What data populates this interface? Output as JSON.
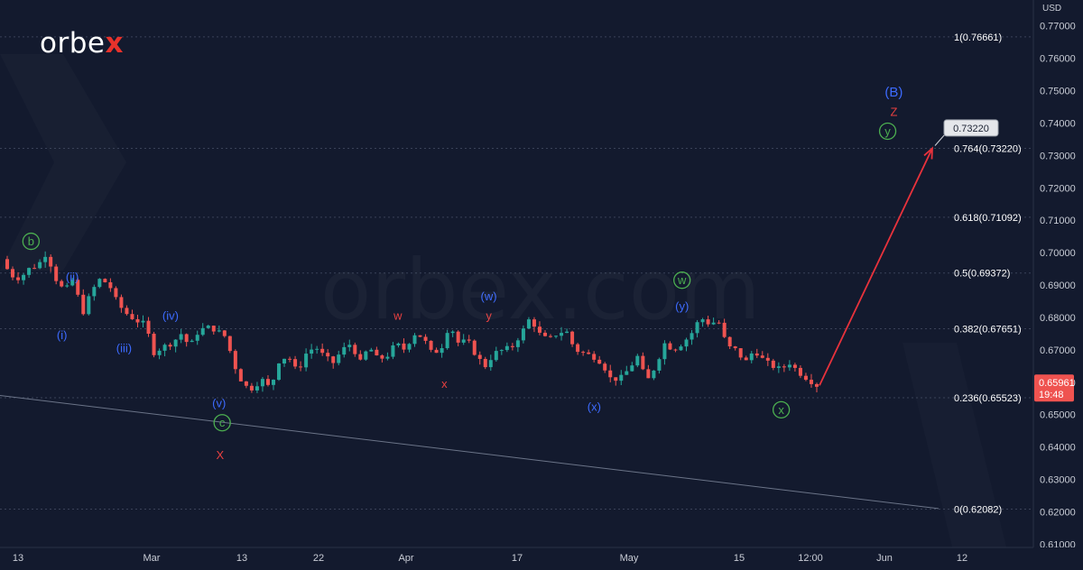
{
  "brand": {
    "logo_prefix": "orbe",
    "logo_accent": "x",
    "watermark": "orbex.com"
  },
  "colors": {
    "background": "#131a2e",
    "grid": "#3a4258",
    "axis_text": "#c9cdd6",
    "candle_up": "#26a69a",
    "candle_down": "#ef5350",
    "wave_blue": "#3d6bff",
    "wave_red": "#e84040",
    "wave_green": "#4caf50",
    "arrow": "#e8323c",
    "price_badge": "#ef5350"
  },
  "chart_data": {
    "type": "candlestick",
    "currency": "USD",
    "y_ticks": [
      0.61,
      0.62,
      0.63,
      0.64,
      0.65,
      0.66,
      0.67,
      0.68,
      0.69,
      0.7,
      0.71,
      0.72,
      0.73,
      0.74,
      0.75,
      0.76,
      0.77
    ],
    "ylim": [
      0.609,
      0.778
    ],
    "x_ticks": [
      "13",
      "Mar",
      "13",
      "22",
      "Apr",
      "17",
      "May",
      "15",
      "12:00",
      "Jun",
      "12"
    ],
    "fib_levels": [
      {
        "label": "1(0.76661)",
        "value": 0.76661
      },
      {
        "label": "0.764(0.73220)",
        "value": 0.7322
      },
      {
        "label": "0.618(0.71092)",
        "value": 0.71092
      },
      {
        "label": "0.5(0.69372)",
        "value": 0.69372
      },
      {
        "label": "0.382(0.67651)",
        "value": 0.67651
      },
      {
        "label": "0.236(0.65523)",
        "value": 0.65523
      },
      {
        "label": "0(0.62082)",
        "value": 0.62082
      }
    ],
    "current_price": {
      "value": "0.65961",
      "countdown": "19:48"
    },
    "target_label": "0.73220",
    "price_path": [
      0.698,
      0.693,
      0.692,
      0.695,
      0.696,
      0.7,
      0.692,
      0.688,
      0.692,
      0.681,
      0.688,
      0.692,
      0.69,
      0.684,
      0.681,
      0.679,
      0.678,
      0.669,
      0.671,
      0.672,
      0.675,
      0.671,
      0.676,
      0.677,
      0.676,
      0.674,
      0.665,
      0.659,
      0.658,
      0.661,
      0.658,
      0.667,
      0.668,
      0.663,
      0.669,
      0.671,
      0.668,
      0.666,
      0.67,
      0.672,
      0.666,
      0.671,
      0.667,
      0.668,
      0.672,
      0.67,
      0.675,
      0.674,
      0.669,
      0.67,
      0.678,
      0.672,
      0.673,
      0.668,
      0.665,
      0.669,
      0.67,
      0.671,
      0.675,
      0.68,
      0.675,
      0.673,
      0.675,
      0.676,
      0.67,
      0.669,
      0.668,
      0.666,
      0.661,
      0.661,
      0.664,
      0.668,
      0.66,
      0.665,
      0.672,
      0.67,
      0.672,
      0.675,
      0.68,
      0.678,
      0.679,
      0.671,
      0.67,
      0.666,
      0.67,
      0.667,
      0.665,
      0.664,
      0.666,
      0.663,
      0.661,
      0.659
    ],
    "annotations": [
      {
        "text": "b",
        "x": 0.03,
        "y": 0.7035,
        "color": "wave_green",
        "circled": true
      },
      {
        "text": "(ii)",
        "x": 0.07,
        "y": 0.6925,
        "color": "wave_blue"
      },
      {
        "text": "(i)",
        "x": 0.06,
        "y": 0.6745,
        "color": "wave_blue"
      },
      {
        "text": "(iii)",
        "x": 0.12,
        "y": 0.6705,
        "color": "wave_blue"
      },
      {
        "text": "(iv)",
        "x": 0.165,
        "y": 0.6805,
        "color": "wave_blue"
      },
      {
        "text": "(v)",
        "x": 0.212,
        "y": 0.6535,
        "color": "wave_blue"
      },
      {
        "text": "c",
        "x": 0.215,
        "y": 0.6475,
        "color": "wave_green",
        "circled": true
      },
      {
        "text": "X",
        "x": 0.213,
        "y": 0.6375,
        "color": "wave_red"
      },
      {
        "text": "w",
        "x": 0.385,
        "y": 0.6805,
        "color": "wave_red"
      },
      {
        "text": "x",
        "x": 0.43,
        "y": 0.6595,
        "color": "wave_red"
      },
      {
        "text": "(w)",
        "x": 0.473,
        "y": 0.6865,
        "color": "wave_blue"
      },
      {
        "text": "y",
        "x": 0.473,
        "y": 0.6805,
        "color": "wave_red"
      },
      {
        "text": "(x)",
        "x": 0.575,
        "y": 0.6525,
        "color": "wave_blue"
      },
      {
        "text": "w",
        "x": 0.66,
        "y": 0.6915,
        "color": "wave_green",
        "circled": true
      },
      {
        "text": "(y)",
        "x": 0.66,
        "y": 0.6835,
        "color": "wave_blue"
      },
      {
        "text": "x",
        "x": 0.756,
        "y": 0.6515,
        "color": "wave_green",
        "circled": true
      },
      {
        "text": "(B)",
        "x": 0.865,
        "y": 0.7495,
        "color": "wave_blue"
      },
      {
        "text": "Z",
        "x": 0.865,
        "y": 0.7435,
        "color": "wave_red"
      },
      {
        "text": "y",
        "x": 0.859,
        "y": 0.7375,
        "color": "wave_green",
        "circled": true
      }
    ]
  }
}
